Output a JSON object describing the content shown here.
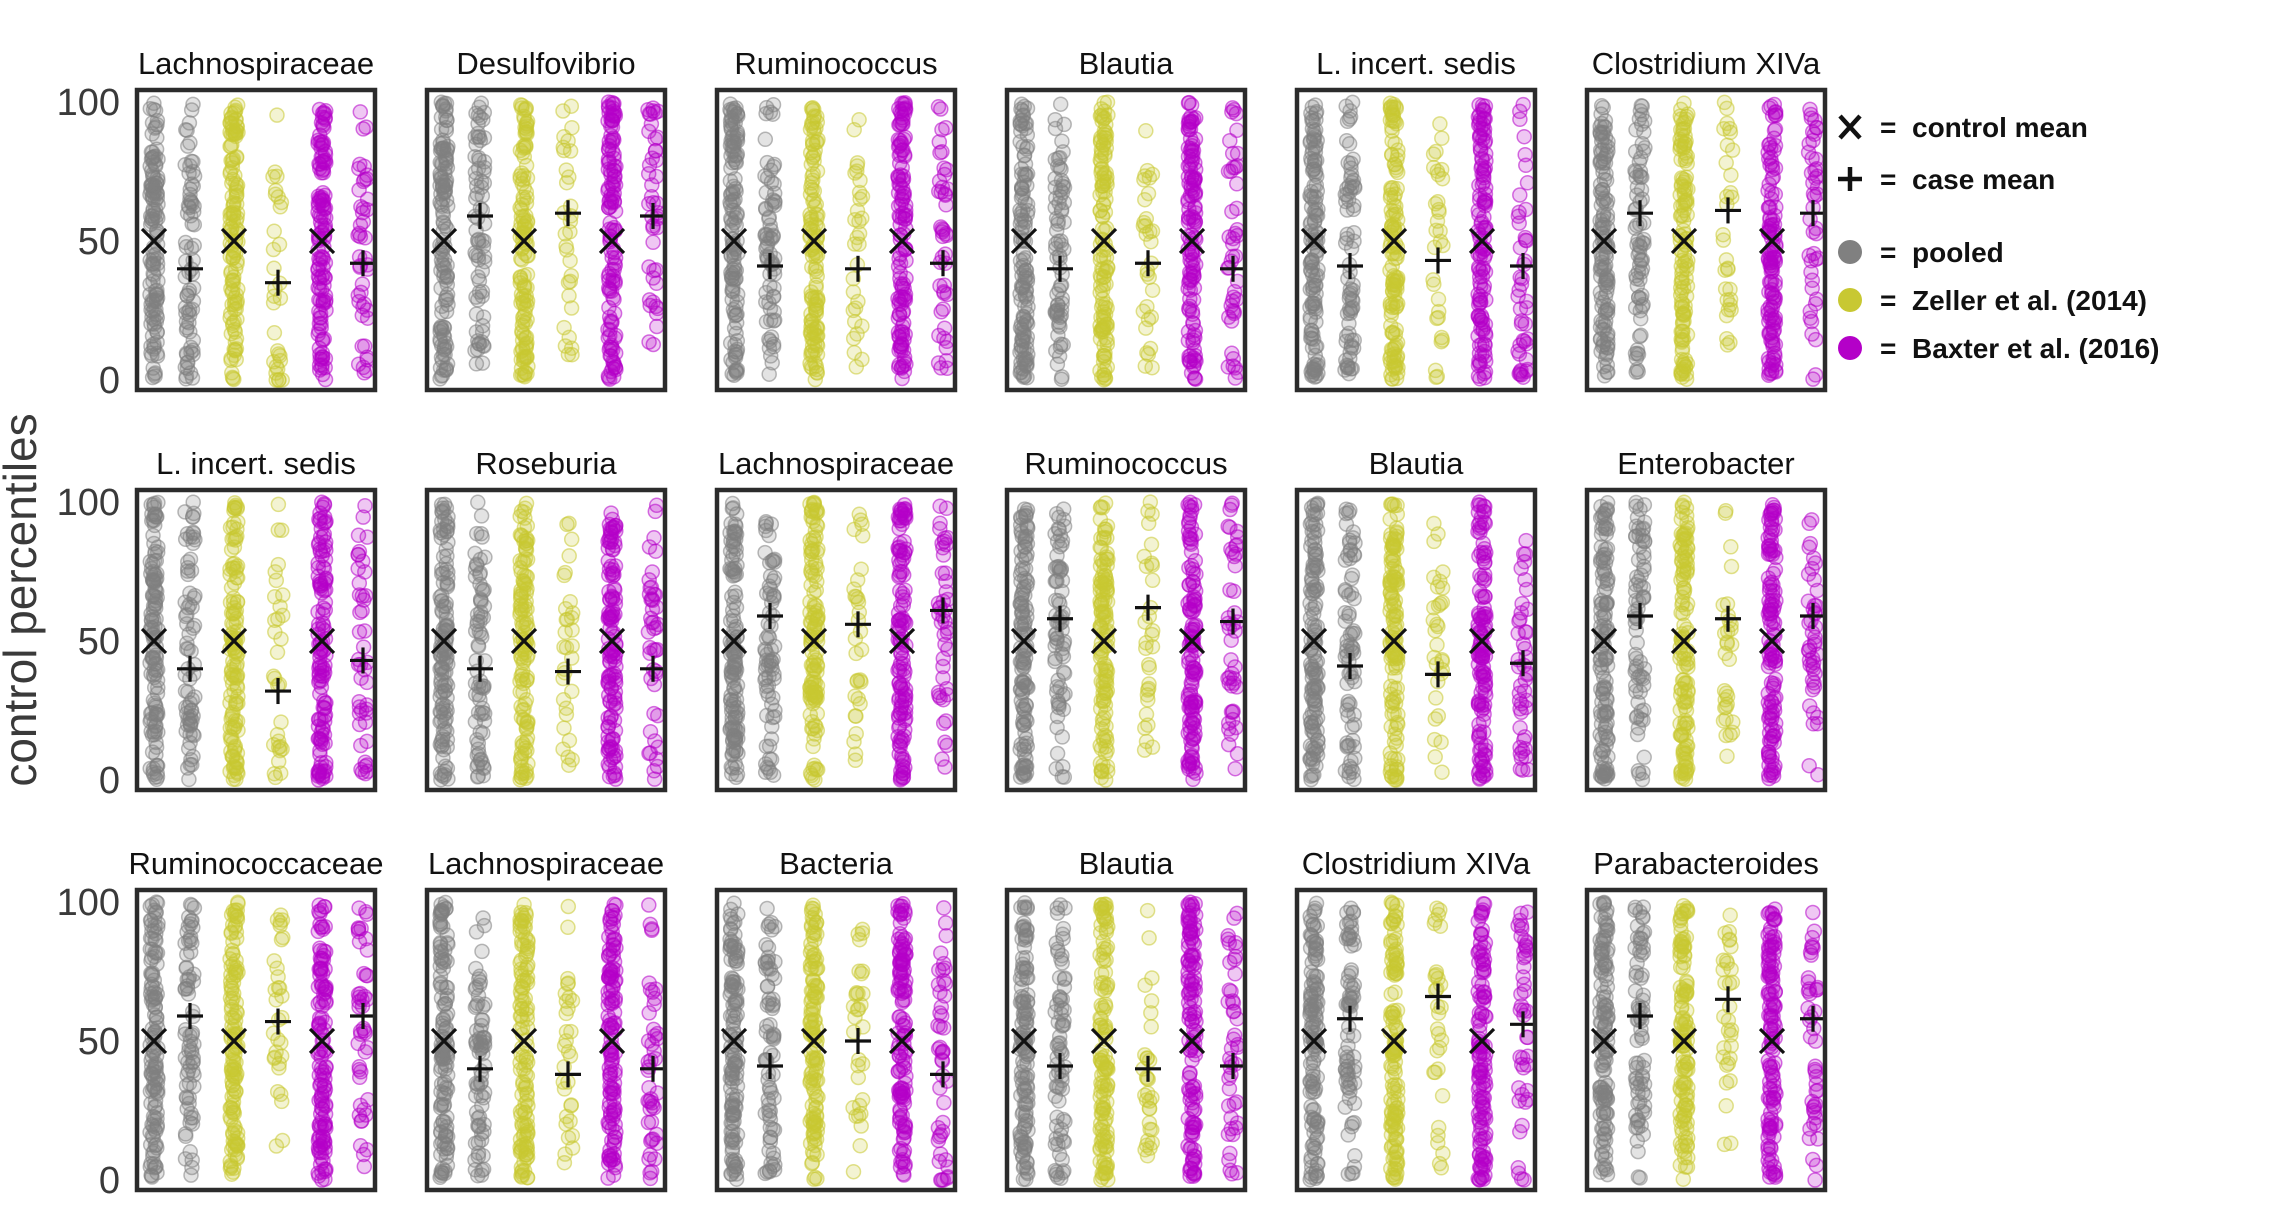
{
  "chart_data": {
    "type": "scatter",
    "ylabel": "control percentiles",
    "ylim": [
      0,
      100
    ],
    "yticks": [
      0,
      50,
      100
    ],
    "grid": false,
    "legend_position": "right",
    "legend": {
      "markers": [
        {
          "symbol": "X",
          "label": "control mean"
        },
        {
          "symbol": "+",
          "label": "case mean"
        }
      ],
      "groups": [
        {
          "label": "pooled",
          "color": "#808080"
        },
        {
          "label": "Zeller et al. (2014)",
          "color": "#c8c832"
        },
        {
          "label": "Baxter et al. (2016)",
          "color": "#b400c8"
        }
      ]
    },
    "columns_per_panel": [
      "pooled control",
      "pooled case",
      "Zeller control",
      "Zeller case",
      "Baxter control",
      "Baxter case"
    ],
    "panels": [
      {
        "title": "Lachnospiraceae",
        "control_mean": [
          50,
          50,
          50
        ],
        "case_mean": [
          40,
          35,
          42
        ],
        "case_density": [
          0.8,
          0.35,
          0.5
        ]
      },
      {
        "title": "Desulfovibrio",
        "control_mean": [
          50,
          50,
          50
        ],
        "case_mean": [
          59,
          60,
          59
        ],
        "case_density": [
          0.8,
          0.35,
          0.5
        ]
      },
      {
        "title": "Ruminococcus",
        "control_mean": [
          50,
          50,
          50
        ],
        "case_mean": [
          41,
          40,
          42
        ],
        "case_density": [
          0.8,
          0.35,
          0.5
        ]
      },
      {
        "title": "Blautia",
        "control_mean": [
          50,
          50,
          50
        ],
        "case_mean": [
          40,
          42,
          40
        ],
        "case_density": [
          0.8,
          0.35,
          0.5
        ]
      },
      {
        "title": "L. incert. sedis",
        "control_mean": [
          50,
          50,
          50
        ],
        "case_mean": [
          41,
          43,
          41
        ],
        "case_density": [
          0.8,
          0.35,
          0.5
        ]
      },
      {
        "title": "Clostridium XIVa",
        "control_mean": [
          50,
          50,
          50
        ],
        "case_mean": [
          60,
          61,
          60
        ],
        "case_density": [
          0.8,
          0.35,
          0.5
        ]
      },
      {
        "title": "L. incert. sedis",
        "control_mean": [
          50,
          50,
          50
        ],
        "case_mean": [
          40,
          32,
          43
        ],
        "case_density": [
          0.8,
          0.35,
          0.5
        ]
      },
      {
        "title": "Roseburia",
        "control_mean": [
          50,
          50,
          50
        ],
        "case_mean": [
          40,
          39,
          40
        ],
        "case_density": [
          0.8,
          0.35,
          0.5
        ]
      },
      {
        "title": "Lachnospiraceae",
        "control_mean": [
          50,
          50,
          50
        ],
        "case_mean": [
          59,
          56,
          61
        ],
        "case_density": [
          0.8,
          0.35,
          0.5
        ]
      },
      {
        "title": "Ruminococcus",
        "control_mean": [
          50,
          50,
          50
        ],
        "case_mean": [
          58,
          62,
          57
        ],
        "case_density": [
          0.8,
          0.35,
          0.5
        ]
      },
      {
        "title": "Blautia",
        "control_mean": [
          50,
          50,
          50
        ],
        "case_mean": [
          41,
          38,
          42
        ],
        "case_density": [
          0.8,
          0.35,
          0.5
        ]
      },
      {
        "title": "Enterobacter",
        "control_mean": [
          50,
          50,
          50
        ],
        "case_mean": [
          59,
          58,
          59
        ],
        "case_density": [
          0.8,
          0.35,
          0.5
        ]
      },
      {
        "title": "Ruminococcaceae",
        "control_mean": [
          50,
          50,
          50
        ],
        "case_mean": [
          59,
          57,
          59
        ],
        "case_density": [
          0.8,
          0.35,
          0.5
        ]
      },
      {
        "title": "Lachnospiraceae",
        "control_mean": [
          50,
          50,
          50
        ],
        "case_mean": [
          40,
          38,
          40
        ],
        "case_density": [
          0.8,
          0.35,
          0.5
        ]
      },
      {
        "title": "Bacteria",
        "control_mean": [
          50,
          50,
          50
        ],
        "case_mean": [
          41,
          50,
          38
        ],
        "case_density": [
          0.8,
          0.35,
          0.5
        ]
      },
      {
        "title": "Blautia",
        "control_mean": [
          50,
          50,
          50
        ],
        "case_mean": [
          41,
          40,
          41
        ],
        "case_density": [
          0.8,
          0.35,
          0.5
        ]
      },
      {
        "title": "Clostridium XIVa",
        "control_mean": [
          50,
          50,
          50
        ],
        "case_mean": [
          58,
          66,
          56
        ],
        "case_density": [
          0.8,
          0.35,
          0.5
        ]
      },
      {
        "title": "Parabacteroides",
        "control_mean": [
          50,
          50,
          50
        ],
        "case_mean": [
          59,
          65,
          58
        ],
        "case_density": [
          0.8,
          0.35,
          0.5
        ]
      }
    ]
  }
}
